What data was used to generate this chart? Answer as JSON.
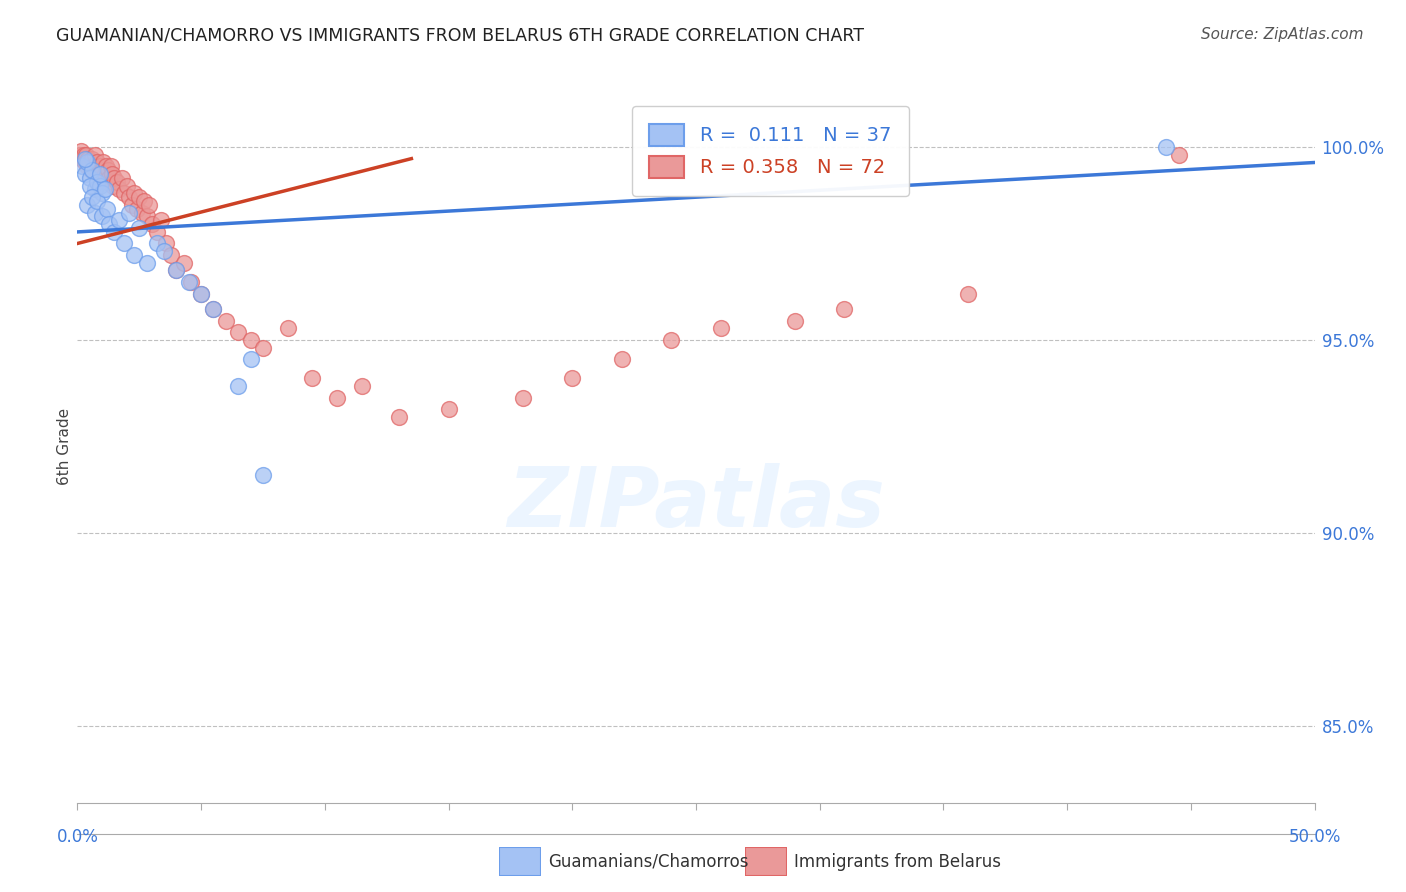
{
  "title": "GUAMANIAN/CHAMORRO VS IMMIGRANTS FROM BELARUS 6TH GRADE CORRELATION CHART",
  "source": "Source: ZipAtlas.com",
  "ylabel_label": "6th Grade",
  "xlim": [
    0.0,
    50.0
  ],
  "ylim": [
    83.0,
    101.5
  ],
  "yticks": [
    85.0,
    90.0,
    95.0,
    100.0
  ],
  "ytick_labels": [
    "85.0%",
    "90.0%",
    "95.0%",
    "100.0%"
  ],
  "r_blue": "0.111",
  "n_blue": "37",
  "r_pink": "0.358",
  "n_pink": "72",
  "blue_color": "#a4c2f4",
  "blue_edge": "#6d9eeb",
  "pink_color": "#ea9999",
  "pink_edge": "#e06666",
  "trendline_blue": "#3c78d8",
  "trendline_pink": "#cc4125",
  "legend_label_blue": "Guamanians/Chamorros",
  "legend_label_pink": "Immigrants from Belarus",
  "blue_scatter_x": [
    0.2,
    0.3,
    0.4,
    0.5,
    0.6,
    0.7,
    0.8,
    0.9,
    1.0,
    0.3,
    0.4,
    0.5,
    0.6,
    0.7,
    0.8,
    0.9,
    1.0,
    1.1,
    1.2,
    1.3,
    1.5,
    1.7,
    1.9,
    2.1,
    2.3,
    2.5,
    2.8,
    3.2,
    3.5,
    4.0,
    4.5,
    5.0,
    5.5,
    6.5,
    7.0,
    7.5,
    44.0
  ],
  "blue_scatter_y": [
    99.5,
    99.3,
    99.6,
    99.2,
    99.4,
    98.9,
    99.1,
    99.0,
    98.8,
    99.7,
    98.5,
    99.0,
    98.7,
    98.3,
    98.6,
    99.3,
    98.2,
    98.9,
    98.4,
    98.0,
    97.8,
    98.1,
    97.5,
    98.3,
    97.2,
    97.9,
    97.0,
    97.5,
    97.3,
    96.8,
    96.5,
    96.2,
    95.8,
    93.8,
    94.5,
    91.5,
    100.0
  ],
  "pink_scatter_x": [
    0.1,
    0.15,
    0.2,
    0.25,
    0.3,
    0.35,
    0.4,
    0.45,
    0.5,
    0.55,
    0.6,
    0.65,
    0.7,
    0.75,
    0.8,
    0.85,
    0.9,
    0.95,
    1.0,
    1.05,
    1.1,
    1.15,
    1.2,
    1.25,
    1.3,
    1.35,
    1.4,
    1.45,
    1.5,
    1.6,
    1.7,
    1.8,
    1.9,
    2.0,
    2.1,
    2.2,
    2.3,
    2.4,
    2.5,
    2.6,
    2.7,
    2.8,
    2.9,
    3.0,
    3.2,
    3.4,
    3.6,
    3.8,
    4.0,
    4.3,
    4.6,
    5.0,
    5.5,
    6.0,
    6.5,
    7.0,
    7.5,
    8.5,
    9.5,
    10.5,
    11.5,
    13.0,
    15.0,
    18.0,
    20.0,
    22.0,
    24.0,
    26.0,
    29.0,
    31.0,
    36.0,
    44.5
  ],
  "pink_scatter_y": [
    99.8,
    99.9,
    99.7,
    99.8,
    99.6,
    99.8,
    99.5,
    99.7,
    99.6,
    99.4,
    99.7,
    99.5,
    99.8,
    99.4,
    99.6,
    99.3,
    99.5,
    99.2,
    99.4,
    99.6,
    99.3,
    99.5,
    99.1,
    99.4,
    99.2,
    99.5,
    99.3,
    99.0,
    99.2,
    99.1,
    98.9,
    99.2,
    98.8,
    99.0,
    98.7,
    98.5,
    98.8,
    98.4,
    98.7,
    98.3,
    98.6,
    98.2,
    98.5,
    98.0,
    97.8,
    98.1,
    97.5,
    97.2,
    96.8,
    97.0,
    96.5,
    96.2,
    95.8,
    95.5,
    95.2,
    95.0,
    94.8,
    95.3,
    94.0,
    93.5,
    93.8,
    93.0,
    93.2,
    93.5,
    94.0,
    94.5,
    95.0,
    95.3,
    95.5,
    95.8,
    96.2,
    99.8
  ],
  "blue_trend_x": [
    0.0,
    50.0
  ],
  "blue_trend_y": [
    97.8,
    99.6
  ],
  "pink_trend_x": [
    0.0,
    13.5
  ],
  "pink_trend_y": [
    97.5,
    99.7
  ]
}
